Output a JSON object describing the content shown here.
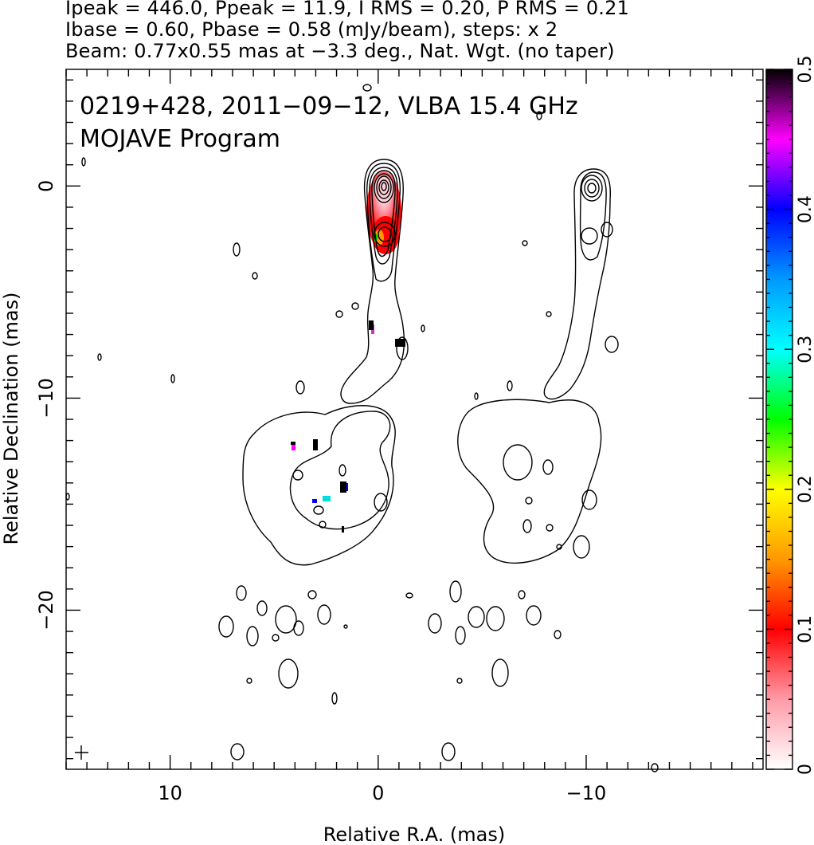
{
  "header": {
    "line1": "Ipeak = 446.0, Ppeak = 11.9, I RMS = 0.20, P RMS = 0.21",
    "line2": "Ibase = 0.60, Pbase = 0.58 (mJy/beam), steps: x 2",
    "line3": "Beam: 0.77x0.55 mas at −3.3 deg., Nat. Wgt. (no taper)"
  },
  "chart_data": {
    "type": "contour",
    "annotation_line1": "0219+428, 2011−09−12, VLBA 15.4 GHz",
    "annotation_line2": "MOJAVE Program",
    "xlabel": "Relative R.A. (mas)",
    "ylabel": "Relative Declination (mas)",
    "xlim": [
      15,
      -18.5
    ],
    "ylim": [
      -27.5,
      5.5
    ],
    "x_ticks": [
      {
        "value": 10,
        "label": "10"
      },
      {
        "value": 0,
        "label": "0"
      },
      {
        "value": -10,
        "label": "−10"
      }
    ],
    "y_ticks": [
      {
        "value": 0,
        "label": "0"
      },
      {
        "value": -10,
        "label": "−10"
      },
      {
        "value": -20,
        "label": "−20"
      }
    ],
    "colorbar": {
      "range": [
        0,
        0.5
      ],
      "ticks": [
        {
          "value": 0,
          "label": "0"
        },
        {
          "value": 0.1,
          "label": "0.1"
        },
        {
          "value": 0.2,
          "label": "0.2"
        },
        {
          "value": 0.3,
          "label": "0.3"
        },
        {
          "value": 0.4,
          "label": "0.4"
        },
        {
          "value": 0.5,
          "label": "0.5"
        }
      ],
      "stops": [
        {
          "v": 0.0,
          "color": "#ffffff"
        },
        {
          "v": 0.05,
          "color": "#ff9aa8"
        },
        {
          "v": 0.1,
          "color": "#ff0000"
        },
        {
          "v": 0.15,
          "color": "#ff9900"
        },
        {
          "v": 0.2,
          "color": "#ffff00"
        },
        {
          "v": 0.25,
          "color": "#00ff00"
        },
        {
          "v": 0.3,
          "color": "#00ffff"
        },
        {
          "v": 0.35,
          "color": "#0099ff"
        },
        {
          "v": 0.4,
          "color": "#0000ff"
        },
        {
          "v": 0.45,
          "color": "#ff00ff"
        },
        {
          "v": 0.5,
          "color": "#000000"
        }
      ]
    },
    "beam_marker_position": "bottom-left",
    "panels": [
      {
        "name": "",
        "center_x": 0
      },
      {
        "name": "",
        "center_x": -10
      }
    ]
  }
}
